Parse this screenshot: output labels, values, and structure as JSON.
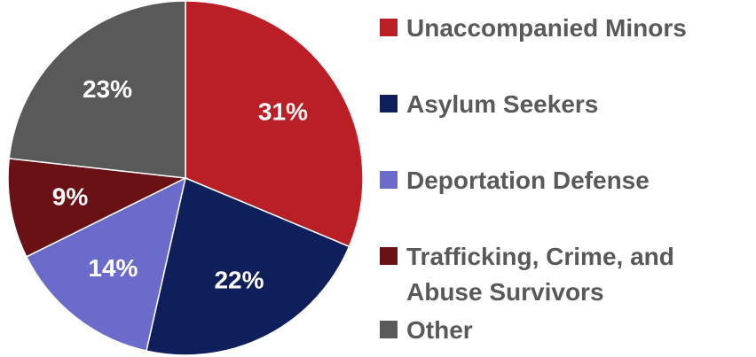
{
  "chart_data": {
    "type": "pie",
    "title": "",
    "legend_position": "right",
    "slices": [
      {
        "label": "Unaccompanied Minors",
        "value": 31,
        "display": "31%",
        "color": "#B91F24"
      },
      {
        "label": "Asylum Seekers",
        "value": 22,
        "display": "22%",
        "color": "#0E1F5B"
      },
      {
        "label": "Deportation Defense",
        "value": 14,
        "display": "14%",
        "color": "#6B6BCB"
      },
      {
        "label": "Trafficking, Crime, and\nAbuse Survivors",
        "value": 9,
        "display": "9%",
        "color": "#6A1116"
      },
      {
        "label": "Other",
        "value": 23,
        "display": "23%",
        "color": "#595959"
      }
    ]
  }
}
